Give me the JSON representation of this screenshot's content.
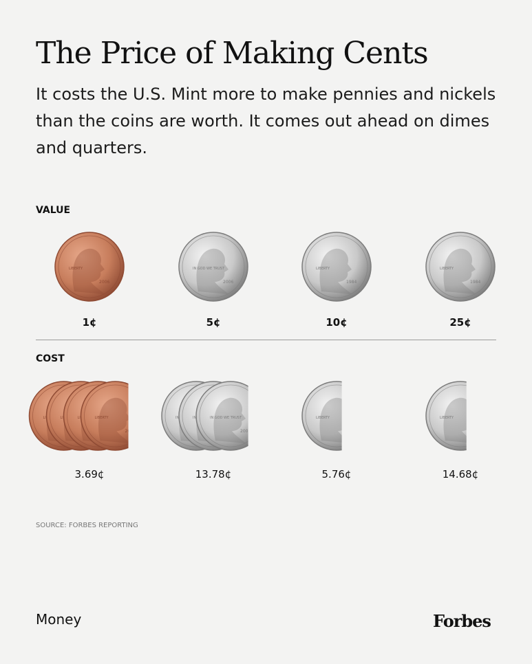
{
  "header": {
    "title": "The Price of Making Cents",
    "subtitle": "It costs the U.S. Mint more to make pennies and nickels than the coins are worth. It comes out ahead on dimes and quarters."
  },
  "sections": {
    "value_label": "VALUE",
    "cost_label": "COST"
  },
  "coin_inscriptions": {
    "penny": [
      "LIBERTY",
      "IN GOD WE TRUST",
      "2006"
    ],
    "nickel": [
      "IN GOD WE TRUST",
      "LIBERTY",
      "2006"
    ],
    "dime": [
      "LIBERTY",
      "IN GOD WE TRUST",
      "1984"
    ],
    "quarter": [
      "LIBERTY",
      "IN GOD WE TRUST",
      "1984"
    ]
  },
  "chart_data": {
    "type": "bar",
    "categories": [
      "Penny",
      "Nickel",
      "Dime",
      "Quarter"
    ],
    "series": [
      {
        "values": [
          1,
          5,
          10,
          25
        ],
        "labels": [
          "1¢",
          "5¢",
          "10¢",
          "25¢"
        ]
      },
      {
        "values": [
          3.69,
          13.78,
          5.76,
          14.68
        ],
        "labels": [
          "3.69¢",
          "13.78¢",
          "5.76¢",
          "14.68¢"
        ]
      }
    ],
    "unit": "¢"
  },
  "colors": {
    "penny": "#c77d5c",
    "penny_dark": "#8e4a33",
    "silver": "#c9c9c9",
    "silver_dark": "#7c7c7c",
    "divider": "#9a9a9a"
  },
  "footer": {
    "source": "SOURCE: FORBES REPORTING",
    "category": "Money",
    "brand": "Forbes"
  }
}
